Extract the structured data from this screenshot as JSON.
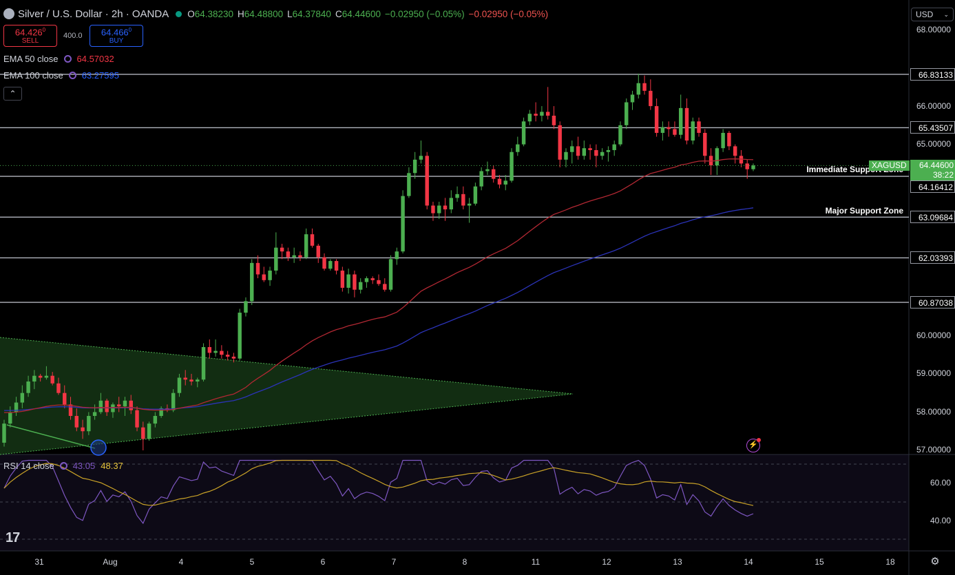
{
  "header": {
    "title": "Silver / U.S. Dollar · 2h · OANDA",
    "open_label": "O",
    "open": "64.38230",
    "high_label": "H",
    "high": "64.48800",
    "low_label": "L",
    "low": "64.37840",
    "close_label": "C",
    "close": "64.44600",
    "change": "−0.02950 (−0.05%)",
    "change2": "−0.02950 (−0.05%)"
  },
  "trade": {
    "sell_price": "64.426",
    "sell_sup": "0",
    "sell_label": "SELL",
    "buy_price": "64.466",
    "buy_sup": "0",
    "buy_label": "BUY",
    "spread": "400.0"
  },
  "indicators": {
    "ema50_name": "EMA 50 close",
    "ema50_value": "64.57032",
    "ema100_name": "EMA 100 close",
    "ema100_value": "63.27595",
    "collapse_icon": "chevron-up-icon"
  },
  "rsi": {
    "name": "RSI 14 close",
    "value": "43.05",
    "ma_value": "48.37"
  },
  "currency_button": "USD",
  "price_axis": [
    "68.00000",
    "66.00000",
    "65.00000",
    "60.00000",
    "59.00000",
    "58.00000",
    "57.00000"
  ],
  "rsi_axis": [
    "60.00",
    "40.00"
  ],
  "hlines": [
    {
      "price": 66.83133,
      "label": "66.83133"
    },
    {
      "price": 65.43507,
      "label": "65.43507"
    },
    {
      "price": 64.16412,
      "label": "64.16412"
    },
    {
      "price": 63.09684,
      "label": "63.09684"
    },
    {
      "price": 62.03393,
      "label": "62.03393"
    },
    {
      "price": 60.87038,
      "label": "60.87038"
    }
  ],
  "current_price": {
    "symbol": "XAGUSD",
    "price": "64.44600",
    "countdown": "38:22"
  },
  "zones": {
    "immediate": "Immediate Support Zone",
    "major": "Major Support Zone"
  },
  "time_axis": [
    "31",
    "Aug",
    "4",
    "5",
    "6",
    "7",
    "8",
    "11",
    "12",
    "13",
    "14",
    "15",
    "18"
  ],
  "colors": {
    "up": "#4caf50",
    "down": "#f23645",
    "ema50": "#b22833",
    "ema100": "#2b33b8",
    "rsi": "#7e57c2",
    "rsi_ma": "#c9a227",
    "triangle": "#143214"
  },
  "chart_data": {
    "type": "candlestick",
    "title": "Silver / U.S. Dollar · 2h · OANDA",
    "ylim": [
      57.0,
      68.0
    ],
    "candles": [
      [
        57.2,
        57.8,
        57.1,
        57.7
      ],
      [
        57.7,
        58.15,
        57.6,
        58.0
      ],
      [
        58.0,
        58.4,
        57.9,
        58.25
      ],
      [
        58.25,
        58.7,
        58.1,
        58.5
      ],
      [
        58.5,
        58.95,
        58.4,
        58.8
      ],
      [
        58.8,
        59.1,
        58.6,
        58.95
      ],
      [
        58.95,
        59.0,
        58.8,
        58.9
      ],
      [
        58.9,
        59.2,
        58.85,
        58.95
      ],
      [
        58.95,
        59.05,
        58.7,
        58.75
      ],
      [
        58.75,
        58.9,
        58.45,
        58.5
      ],
      [
        58.5,
        58.7,
        58.1,
        58.2
      ],
      [
        58.2,
        58.4,
        57.8,
        57.9
      ],
      [
        57.9,
        58.1,
        57.5,
        57.6
      ],
      [
        57.6,
        57.8,
        57.3,
        57.5
      ],
      [
        57.5,
        58.0,
        57.4,
        57.9
      ],
      [
        57.9,
        58.2,
        57.8,
        58.0
      ],
      [
        58.0,
        58.5,
        57.95,
        58.3
      ],
      [
        58.3,
        58.35,
        57.9,
        58.0
      ],
      [
        58.0,
        58.25,
        57.85,
        58.2
      ],
      [
        58.2,
        58.4,
        58.0,
        58.15
      ],
      [
        58.15,
        58.4,
        57.9,
        58.3
      ],
      [
        58.3,
        58.45,
        57.95,
        58.05
      ],
      [
        58.05,
        58.15,
        57.5,
        57.6
      ],
      [
        57.6,
        57.75,
        57.0,
        57.3
      ],
      [
        57.3,
        57.75,
        57.25,
        57.7
      ],
      [
        57.7,
        58.0,
        57.6,
        57.9
      ],
      [
        57.9,
        58.15,
        57.85,
        58.1
      ],
      [
        58.1,
        58.2,
        58.0,
        58.05
      ],
      [
        58.05,
        58.6,
        58.0,
        58.5
      ],
      [
        58.5,
        59.0,
        58.4,
        58.9
      ],
      [
        58.9,
        59.1,
        58.7,
        58.85
      ],
      [
        58.85,
        59.0,
        58.7,
        58.8
      ],
      [
        58.8,
        58.9,
        58.65,
        58.85
      ],
      [
        58.85,
        59.8,
        58.8,
        59.7
      ],
      [
        59.7,
        59.9,
        59.4,
        59.55
      ],
      [
        59.55,
        59.9,
        59.45,
        59.6
      ],
      [
        59.6,
        59.75,
        59.4,
        59.5
      ],
      [
        59.5,
        59.6,
        59.35,
        59.45
      ],
      [
        59.45,
        59.55,
        59.3,
        59.4
      ],
      [
        59.4,
        60.7,
        59.35,
        60.6
      ],
      [
        60.6,
        61.0,
        60.5,
        60.9
      ],
      [
        60.9,
        62.0,
        60.8,
        61.9
      ],
      [
        61.9,
        62.1,
        61.5,
        61.6
      ],
      [
        61.6,
        61.8,
        61.4,
        61.45
      ],
      [
        61.45,
        61.8,
        61.3,
        61.7
      ],
      [
        61.7,
        62.7,
        61.6,
        62.3
      ],
      [
        62.3,
        62.4,
        62.0,
        62.2
      ],
      [
        62.2,
        62.3,
        61.95,
        62.05
      ],
      [
        62.05,
        62.3,
        61.9,
        62.1
      ],
      [
        62.1,
        62.2,
        61.95,
        62.05
      ],
      [
        62.05,
        62.8,
        62.0,
        62.65
      ],
      [
        62.65,
        62.8,
        62.3,
        62.35
      ],
      [
        62.35,
        62.4,
        61.9,
        62.05
      ],
      [
        62.05,
        62.15,
        61.7,
        61.75
      ],
      [
        61.75,
        62.0,
        61.7,
        61.95
      ],
      [
        61.95,
        62.0,
        61.6,
        61.7
      ],
      [
        61.7,
        61.8,
        61.15,
        61.25
      ],
      [
        61.25,
        61.75,
        61.1,
        61.6
      ],
      [
        61.6,
        61.7,
        61.0,
        61.2
      ],
      [
        61.2,
        61.5,
        61.1,
        61.4
      ],
      [
        61.4,
        61.55,
        61.25,
        61.5
      ],
      [
        61.5,
        61.55,
        61.35,
        61.45
      ],
      [
        61.45,
        61.6,
        61.3,
        61.35
      ],
      [
        61.35,
        61.5,
        61.15,
        61.2
      ],
      [
        61.2,
        62.1,
        61.15,
        62.0
      ],
      [
        62.0,
        62.3,
        61.85,
        62.2
      ],
      [
        62.2,
        63.8,
        62.15,
        63.65
      ],
      [
        63.65,
        64.4,
        63.6,
        64.25
      ],
      [
        64.25,
        64.8,
        64.1,
        64.6
      ],
      [
        64.6,
        65.1,
        64.5,
        64.7
      ],
      [
        64.7,
        64.8,
        63.3,
        63.4
      ],
      [
        63.4,
        63.5,
        63.0,
        63.2
      ],
      [
        63.2,
        63.5,
        63.05,
        63.4
      ],
      [
        63.4,
        63.6,
        63.0,
        63.3
      ],
      [
        63.3,
        63.8,
        63.2,
        63.6
      ],
      [
        63.6,
        63.9,
        63.5,
        63.7
      ],
      [
        63.7,
        63.9,
        63.3,
        63.4
      ],
      [
        63.4,
        63.6,
        62.95,
        63.45
      ],
      [
        63.45,
        64.0,
        63.4,
        63.9
      ],
      [
        63.9,
        64.4,
        63.8,
        64.3
      ],
      [
        64.3,
        64.55,
        64.2,
        64.35
      ],
      [
        64.35,
        64.45,
        64.0,
        64.1
      ],
      [
        64.1,
        64.2,
        63.85,
        63.95
      ],
      [
        63.95,
        64.2,
        63.8,
        64.05
      ],
      [
        64.05,
        64.9,
        64.0,
        64.8
      ],
      [
        64.8,
        65.2,
        64.7,
        65.0
      ],
      [
        65.0,
        65.7,
        64.95,
        65.6
      ],
      [
        65.6,
        65.9,
        65.5,
        65.8
      ],
      [
        65.8,
        66.1,
        65.6,
        65.75
      ],
      [
        65.75,
        66.0,
        65.6,
        65.85
      ],
      [
        65.85,
        66.5,
        65.65,
        65.75
      ],
      [
        65.75,
        66.0,
        65.4,
        65.5
      ],
      [
        65.5,
        65.6,
        64.4,
        64.6
      ],
      [
        64.6,
        64.9,
        64.4,
        64.8
      ],
      [
        64.8,
        65.1,
        64.5,
        64.95
      ],
      [
        64.95,
        65.2,
        64.6,
        64.7
      ],
      [
        64.7,
        65.1,
        64.6,
        64.9
      ],
      [
        64.9,
        65.0,
        64.6,
        64.85
      ],
      [
        64.85,
        65.0,
        64.4,
        64.7
      ],
      [
        64.7,
        64.9,
        64.6,
        64.8
      ],
      [
        64.8,
        64.95,
        64.55,
        64.85
      ],
      [
        64.85,
        65.1,
        64.7,
        65.0
      ],
      [
        65.0,
        65.6,
        64.95,
        65.5
      ],
      [
        65.5,
        66.2,
        65.4,
        66.1
      ],
      [
        66.1,
        66.4,
        65.9,
        66.3
      ],
      [
        66.3,
        66.85,
        66.2,
        66.6
      ],
      [
        66.6,
        66.8,
        66.3,
        66.4
      ],
      [
        66.4,
        66.7,
        65.9,
        66.0
      ],
      [
        66.0,
        66.2,
        65.2,
        65.3
      ],
      [
        65.3,
        65.6,
        65.1,
        65.45
      ],
      [
        65.45,
        65.6,
        65.2,
        65.4
      ],
      [
        65.4,
        65.6,
        65.2,
        65.25
      ],
      [
        65.25,
        66.3,
        65.15,
        65.95
      ],
      [
        65.95,
        66.2,
        65.0,
        65.1
      ],
      [
        65.1,
        65.7,
        65.0,
        65.6
      ],
      [
        65.6,
        65.7,
        65.2,
        65.3
      ],
      [
        65.3,
        65.4,
        64.5,
        64.7
      ],
      [
        64.7,
        64.9,
        64.2,
        64.45
      ],
      [
        64.45,
        64.95,
        64.2,
        64.9
      ],
      [
        64.9,
        65.4,
        64.8,
        65.3
      ],
      [
        65.3,
        65.35,
        64.85,
        64.95
      ],
      [
        64.95,
        65.0,
        64.5,
        64.7
      ],
      [
        64.7,
        64.85,
        64.4,
        64.5
      ],
      [
        64.5,
        64.6,
        64.1,
        64.35
      ],
      [
        64.35,
        64.5,
        64.3,
        64.45
      ]
    ]
  }
}
